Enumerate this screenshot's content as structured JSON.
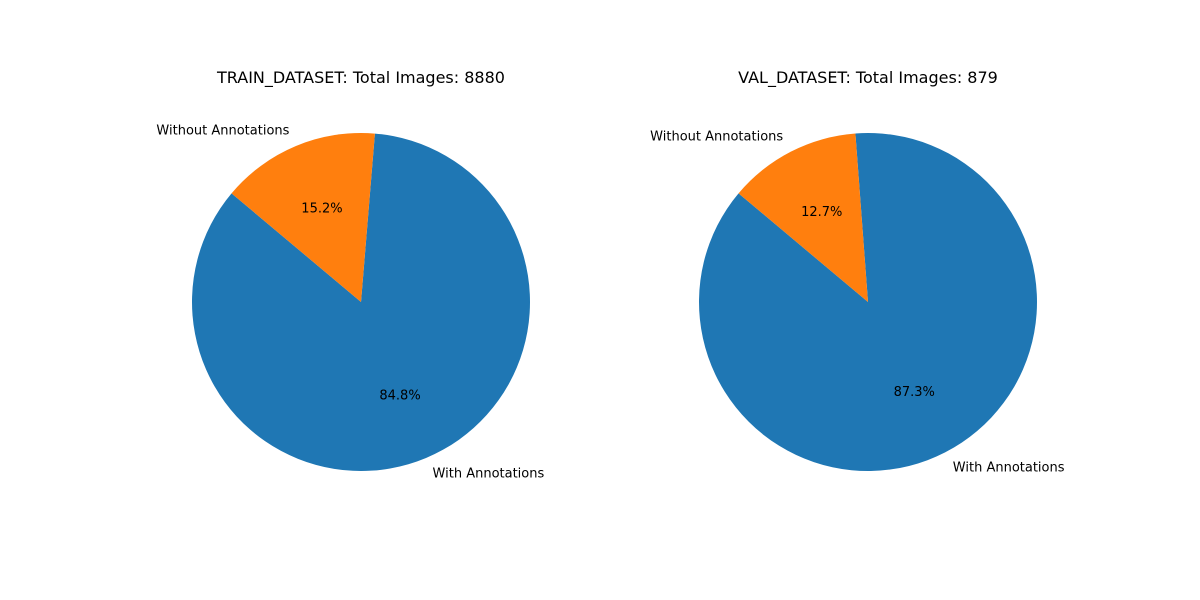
{
  "chart_data": [
    {
      "type": "pie",
      "title": "TRAIN_DATASET:  Total Images: 8880",
      "labels": [
        "With Annotations",
        "Without Annotations"
      ],
      "values": [
        84.8,
        15.2
      ],
      "autopct": [
        "84.8%",
        "15.2%"
      ],
      "colors": [
        "#1f77b4",
        "#ff7f0e"
      ],
      "start_angle_deg": 140
    },
    {
      "type": "pie",
      "title": "VAL_DATASET: Total Images: 879",
      "labels": [
        "With Annotations",
        "Without Annotations"
      ],
      "values": [
        87.3,
        12.7
      ],
      "autopct": [
        "87.3%",
        "12.7%"
      ],
      "colors": [
        "#1f77b4",
        "#ff7f0e"
      ],
      "start_angle_deg": 140
    }
  ]
}
